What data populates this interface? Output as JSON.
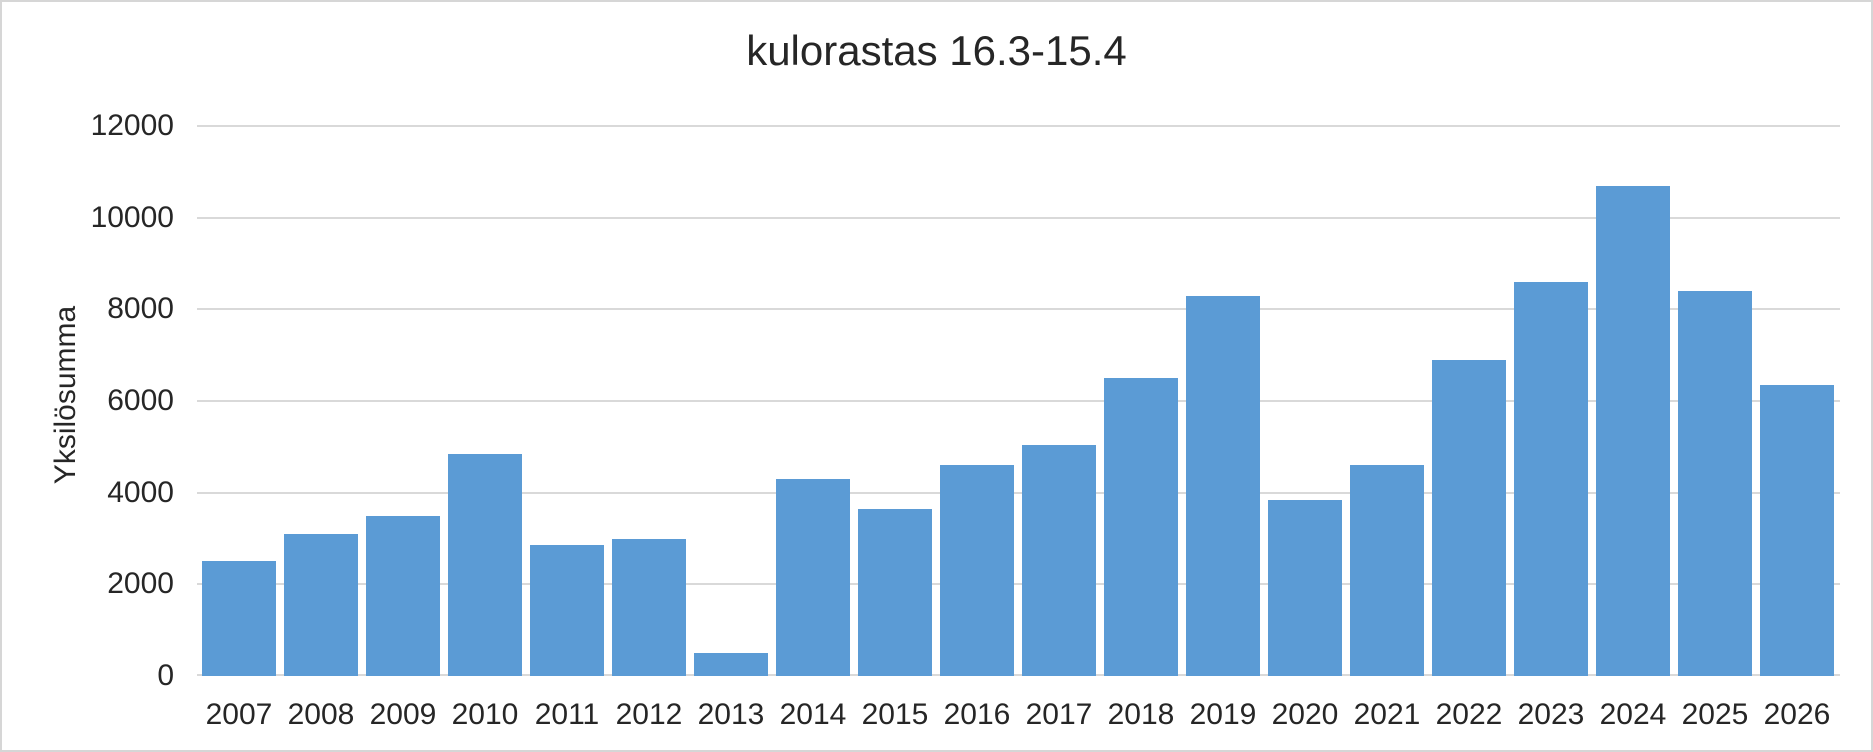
{
  "chart_data": {
    "type": "bar",
    "title": "kulorastas 16.3-15.4",
    "xlabel": "",
    "ylabel": "Yksilösumma",
    "categories": [
      "2007",
      "2008",
      "2009",
      "2010",
      "2011",
      "2012",
      "2013",
      "2014",
      "2015",
      "2016",
      "2017",
      "2018",
      "2019",
      "2020",
      "2021",
      "2022",
      "2023",
      "2024",
      "2025",
      "2026"
    ],
    "values": [
      2500,
      3100,
      3500,
      4850,
      2850,
      3000,
      500,
      4300,
      3650,
      4600,
      5050,
      6500,
      8300,
      3850,
      4600,
      6900,
      8600,
      10700,
      8400,
      6350
    ],
    "ylim": [
      0,
      12000
    ],
    "yticks": [
      0,
      2000,
      4000,
      6000,
      8000,
      10000,
      12000
    ],
    "grid": true,
    "legend": "none"
  },
  "style": {
    "background": "#ffffff",
    "border_color": "#d6d6d6",
    "bar_color": "#5b9bd5",
    "gridline_color": "#d9d9d9",
    "axis_line_color": "#d9d9d9",
    "text_color": "#262626"
  }
}
